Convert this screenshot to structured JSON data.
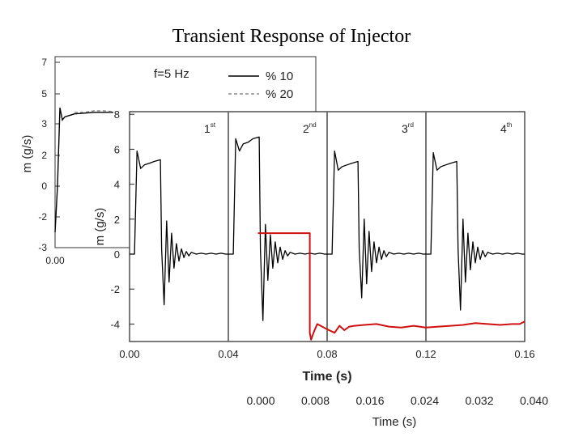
{
  "title": "Transient Response of Injector",
  "chart_data": [
    {
      "type": "line",
      "panel": "background",
      "ylabel": "m (g/s)",
      "ylim": [
        -3,
        7
      ],
      "yticks": [
        "7",
        "5",
        "3",
        "2",
        "0",
        "-2",
        "-3"
      ],
      "xticks_visible": [
        "0.00"
      ],
      "legend": {
        "placement": "top-right",
        "title": "f=5 Hz",
        "entries": [
          "% 10",
          "% 20"
        ]
      },
      "series": [
        {
          "name": "% 10",
          "style": "solid",
          "color": "#000000",
          "x": [
            0.0,
            0.0005,
            0.001,
            0.0015,
            0.002,
            0.003,
            0.004,
            0.006,
            0.008,
            0.012
          ],
          "y": [
            -3.0,
            0.0,
            5.1,
            4.3,
            4.5,
            4.6,
            4.7,
            4.75,
            4.8,
            4.8
          ]
        },
        {
          "name": "% 20",
          "style": "dashed",
          "color": "#888888",
          "x": [
            0.004,
            0.006,
            0.008,
            0.01,
            0.012
          ],
          "y": [
            4.8,
            4.8,
            4.9,
            4.9,
            4.85
          ]
        }
      ],
      "secondary_x_axis": {
        "xlabel": "Time (s)",
        "ticks": [
          "0.000",
          "0.008",
          "0.016",
          "0.024",
          "0.032",
          "0.040"
        ]
      }
    },
    {
      "type": "line",
      "panel": "foreground",
      "xlabel": "Time (s)",
      "ylabel": "m (g/s)",
      "xlim": [
        0,
        0.16
      ],
      "ylim": [
        -5,
        8
      ],
      "xticks": [
        "0.00",
        "0.04",
        "0.08",
        "0.12",
        "0.16"
      ],
      "yticks": [
        "8",
        "6",
        "4",
        "2",
        "0",
        "-2",
        "-4"
      ],
      "pulse_markers": [
        {
          "x": 0.04,
          "label": "1",
          "sup": "st"
        },
        {
          "x": 0.08,
          "label": "2",
          "sup": "nd"
        },
        {
          "x": 0.12,
          "label": "3",
          "sup": "rd"
        },
        {
          "x": 0.16,
          "label": "4",
          "sup": "th"
        }
      ],
      "series": [
        {
          "name": "",
          "color": "#000000",
          "x": [
            0.0,
            0.002,
            0.003,
            0.0045,
            0.006,
            0.008,
            0.01,
            0.0125,
            0.013,
            0.014,
            0.015,
            0.016,
            0.017,
            0.018,
            0.019,
            0.02,
            0.021,
            0.022,
            0.023,
            0.024,
            0.025,
            0.027,
            0.029,
            0.031,
            0.033,
            0.035,
            0.037,
            0.039,
            0.04,
            0.042,
            0.043,
            0.0445,
            0.046,
            0.048,
            0.05,
            0.0525,
            0.053,
            0.054,
            0.055,
            0.056,
            0.057,
            0.058,
            0.059,
            0.06,
            0.061,
            0.062,
            0.063,
            0.064,
            0.065,
            0.067,
            0.069,
            0.071,
            0.073,
            0.075,
            0.077,
            0.079,
            0.08,
            0.082,
            0.083,
            0.0845,
            0.086,
            0.088,
            0.09,
            0.0925,
            0.093,
            0.094,
            0.095,
            0.096,
            0.097,
            0.098,
            0.099,
            0.1,
            0.101,
            0.102,
            0.103,
            0.104,
            0.105,
            0.107,
            0.109,
            0.111,
            0.113,
            0.115,
            0.117,
            0.119,
            0.12,
            0.122,
            0.123,
            0.1245,
            0.126,
            0.128,
            0.13,
            0.1325,
            0.133,
            0.134,
            0.135,
            0.136,
            0.137,
            0.138,
            0.139,
            0.14,
            0.141,
            0.142,
            0.143,
            0.144,
            0.145,
            0.147,
            0.149,
            0.151,
            0.153,
            0.155,
            0.157,
            0.159,
            0.16
          ],
          "y": [
            0,
            0,
            5.9,
            4.9,
            5.1,
            5.2,
            5.3,
            5.4,
            0.3,
            -2.9,
            1.9,
            -1.6,
            1.2,
            -0.8,
            0.6,
            -0.4,
            0.3,
            -0.2,
            0.15,
            -0.1,
            0.1,
            0,
            0.05,
            0,
            0.05,
            0,
            0.05,
            0,
            0,
            0,
            6.6,
            5.9,
            6.3,
            6.4,
            6.6,
            6.7,
            0.3,
            -3.8,
            1.7,
            -1.5,
            1.1,
            -0.8,
            0.7,
            -0.5,
            0.4,
            -0.3,
            0.2,
            -0.1,
            0.1,
            0,
            0.05,
            0,
            0.05,
            0,
            0.05,
            0,
            0,
            0,
            5.9,
            4.8,
            5.0,
            5.1,
            5.2,
            5.3,
            0.3,
            -2.5,
            2.0,
            -1.7,
            1.3,
            -1.0,
            0.7,
            -0.5,
            0.4,
            -0.3,
            0.2,
            -0.15,
            0.1,
            0,
            0.05,
            0,
            0.05,
            0,
            0.05,
            0,
            0,
            0,
            5.8,
            4.8,
            5.0,
            5.1,
            5.2,
            5.3,
            0.3,
            -3.2,
            2.0,
            -1.6,
            1.2,
            -0.9,
            0.7,
            -0.5,
            0.4,
            -0.3,
            0.2,
            -0.15,
            0.1,
            0,
            0.05,
            0,
            0.05,
            0,
            0.05,
            0,
            0
          ]
        },
        {
          "name": "",
          "color": "#d01010",
          "x": [
            0.052,
            0.073,
            0.073,
            0.0735,
            0.0745,
            0.076,
            0.078,
            0.08,
            0.083,
            0.085,
            0.087,
            0.089,
            0.091,
            0.095,
            0.1,
            0.105,
            0.11,
            0.115,
            0.12,
            0.125,
            0.13,
            0.135,
            0.14,
            0.145,
            0.15,
            0.155,
            0.158,
            0.16
          ],
          "y": [
            1.2,
            1.2,
            -4.5,
            -4.9,
            -4.5,
            -4.0,
            -4.15,
            -4.3,
            -4.5,
            -4.1,
            -4.35,
            -4.15,
            -4.1,
            -4.05,
            -4.0,
            -4.15,
            -4.2,
            -4.1,
            -4.2,
            -4.15,
            -4.1,
            -4.05,
            -3.95,
            -4.0,
            -4.05,
            -4.0,
            -4.0,
            -3.85
          ]
        }
      ]
    }
  ]
}
